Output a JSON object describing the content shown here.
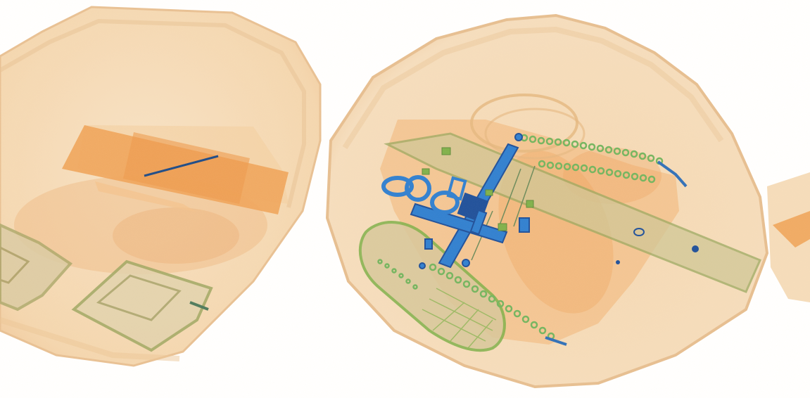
{
  "image": {
    "kind": "xray-baggage-scan",
    "colors": {
      "background": "#ffffff",
      "organic_light": "#f6dcb8",
      "organic_mid": "#f0b270",
      "organic_dense": "#e9933e",
      "inorganic_green": "#7fb04a",
      "metal_blue": "#2f7fd0",
      "metal_dark": "#1e4f9a"
    }
  }
}
